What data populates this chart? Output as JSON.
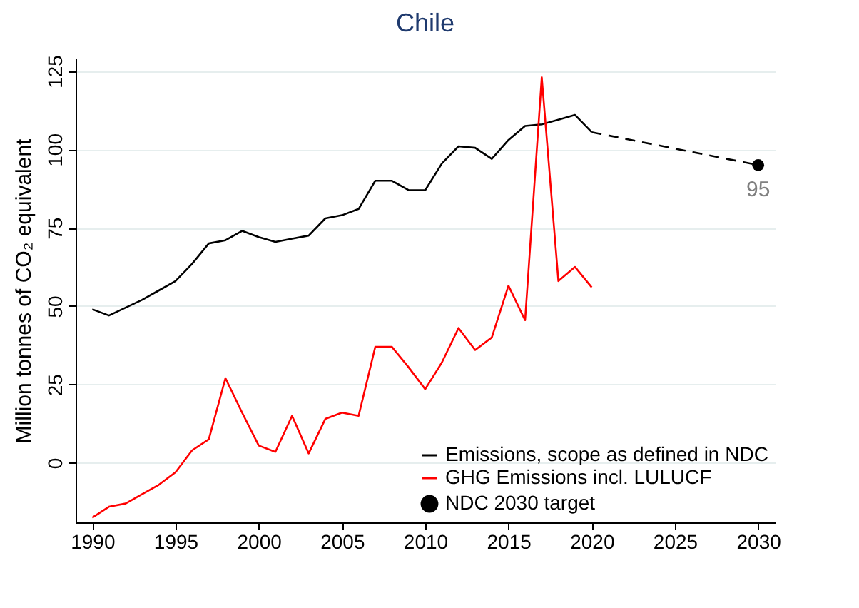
{
  "chart_data": {
    "type": "line",
    "title": "Chile",
    "ylabel": "Million tonnes of CO₂ equivalent",
    "x": [
      1990,
      1991,
      1992,
      1993,
      1994,
      1995,
      1996,
      1997,
      1998,
      1999,
      2000,
      2001,
      2002,
      2003,
      2004,
      2005,
      2006,
      2007,
      2008,
      2009,
      2010,
      2011,
      2012,
      2013,
      2014,
      2015,
      2016,
      2017,
      2018,
      2019,
      2020,
      2030
    ],
    "series": [
      {
        "name": "Emissions, scope as defined in NDC",
        "color": "#000000",
        "values": [
          49,
          47,
          49.5,
          52,
          55,
          58,
          63.5,
          70,
          71,
          74,
          72,
          70.5,
          71.5,
          72.5,
          78,
          79,
          81,
          90,
          90,
          87,
          87,
          95.5,
          101,
          100.5,
          97,
          103,
          107.5,
          108,
          109.5,
          111,
          105.5,
          null
        ]
      },
      {
        "name": "GHG Emissions incl. LULUCF",
        "color": "#ff0000",
        "values": [
          -17.5,
          -14,
          -13,
          -10,
          -7,
          -3,
          4,
          7.5,
          27,
          16,
          5.5,
          3.5,
          15,
          3,
          14,
          16,
          15,
          37,
          37,
          30.5,
          23.5,
          32,
          43,
          36,
          40,
          56.5,
          45.5,
          123,
          58,
          62.5,
          56,
          null
        ]
      },
      {
        "type": "line",
        "color": "#000000",
        "line_style": "dashed",
        "values": [
          null,
          null,
          null,
          null,
          null,
          null,
          null,
          null,
          null,
          null,
          null,
          null,
          null,
          null,
          null,
          null,
          null,
          null,
          null,
          null,
          null,
          null,
          null,
          null,
          null,
          null,
          null,
          null,
          null,
          null,
          105.5,
          95
        ]
      },
      {
        "type": "scatter",
        "name": "NDC 2030 target",
        "color": "#000000",
        "marker": "circle",
        "values": [
          null,
          null,
          null,
          null,
          null,
          null,
          null,
          null,
          null,
          null,
          null,
          null,
          null,
          null,
          null,
          null,
          null,
          null,
          null,
          null,
          null,
          null,
          null,
          null,
          null,
          null,
          null,
          null,
          null,
          null,
          null,
          95
        ],
        "value_labels": [
          null,
          null,
          null,
          null,
          null,
          null,
          null,
          null,
          null,
          null,
          null,
          null,
          null,
          null,
          null,
          null,
          null,
          null,
          null,
          null,
          null,
          null,
          null,
          null,
          null,
          null,
          null,
          null,
          null,
          null,
          null,
          "95"
        ]
      }
    ],
    "xlim": [
      1989,
      2031
    ],
    "ylim": [
      -19,
      129
    ],
    "xticks": [
      1990,
      1995,
      2000,
      2005,
      2010,
      2015,
      2020,
      2025,
      2030
    ],
    "yticks": [
      0,
      25,
      50,
      75,
      100,
      125
    ],
    "grid": "y",
    "legend": "bottom right"
  }
}
